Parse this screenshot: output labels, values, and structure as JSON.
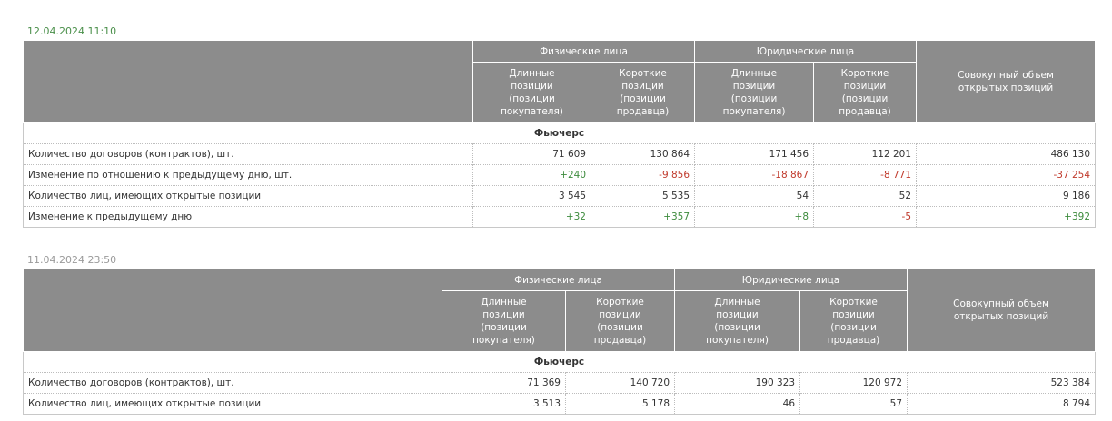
{
  "tables": [
    {
      "date": "12.04.2024 11:10",
      "groups": [
        "Физические лица",
        "Юридические лица"
      ],
      "subheaders": [
        "Длинные позиции (позиции покупателя)",
        "Короткие позиции (позиции продавца)",
        "Длинные позиции (позиции покупателя)",
        "Короткие позиции (позиции продавца)"
      ],
      "total_header": "Совокупный объем открытых позиций",
      "section": "Фьючерс",
      "rows": [
        {
          "label": "Количество договоров (контрактов), шт.",
          "values": [
            "71 609",
            "130 864",
            "171 456",
            "112 201",
            "486 130"
          ]
        },
        {
          "label": "Изменение по отношению к предыдущему дню, шт.",
          "values": [
            "+240",
            "-9 856",
            "-18 867",
            "-8 771",
            "-37 254"
          ]
        },
        {
          "label": "Количество лиц, имеющих открытые позиции",
          "values": [
            "3 545",
            "5 535",
            "54",
            "52",
            "9 186"
          ]
        },
        {
          "label": "Изменение к предыдущему дню",
          "values": [
            "+32",
            "+357",
            "+8",
            "-5",
            "+392"
          ]
        }
      ]
    },
    {
      "date": "11.04.2024 23:50",
      "groups": [
        "Физические лица",
        "Юридические лица"
      ],
      "subheaders": [
        "Длинные позиции (позиции покупателя)",
        "Короткие позиции (позиции продавца)",
        "Длинные позиции (позиции покупателя)",
        "Короткие позиции (позиции продавца)"
      ],
      "total_header": "Совокупный объем открытых позиций",
      "section": "Фьючерс",
      "rows": [
        {
          "label": "Количество договоров (контрактов), шт.",
          "values": [
            "71 369",
            "140 720",
            "190 323",
            "120 972",
            "523 384"
          ]
        },
        {
          "label": "Количество лиц, имеющих открытые позиции",
          "values": [
            "3 513",
            "5 178",
            "46",
            "57",
            "8 794"
          ]
        }
      ]
    }
  ]
}
